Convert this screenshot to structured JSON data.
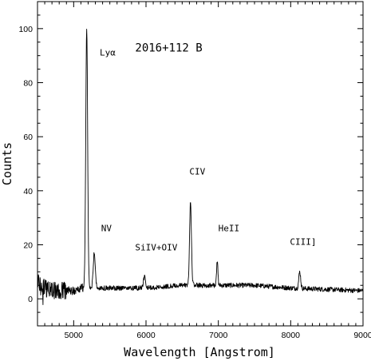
{
  "chart_data": {
    "type": "line",
    "title": "2016+112 B",
    "xlabel": "Wavelength [Angstrom]",
    "ylabel": "Counts",
    "xlim": [
      4500,
      9000
    ],
    "ylim": [
      -10,
      110
    ],
    "x_ticks": [
      5000,
      6000,
      7000,
      8000,
      9000
    ],
    "y_ticks": [
      0,
      20,
      40,
      60,
      80,
      100
    ],
    "grid": false,
    "continuum": [
      [
        4500,
        6
      ],
      [
        4600,
        4
      ],
      [
        4700,
        3
      ],
      [
        4800,
        3
      ],
      [
        4900,
        3
      ],
      [
        5000,
        3
      ],
      [
        5100,
        4
      ],
      [
        5200,
        4
      ],
      [
        5500,
        4
      ],
      [
        6000,
        4
      ],
      [
        6500,
        5
      ],
      [
        7000,
        5
      ],
      [
        7500,
        5
      ],
      [
        8000,
        4
      ],
      [
        8500,
        3.5
      ],
      [
        9000,
        3
      ]
    ],
    "emission_lines": [
      {
        "name": "Lyα",
        "x": 5180,
        "peak": 100,
        "width": 13
      },
      {
        "name": "NV",
        "x": 5285,
        "peak": 17.5,
        "width": 14
      },
      {
        "name": "SiIV+OIV",
        "x": 5980,
        "peak": 8.5,
        "width": 14
      },
      {
        "name": "CIV",
        "x": 6615,
        "peak": 35.5,
        "width": 13
      },
      {
        "name": "HeII",
        "x": 6985,
        "peak": 14,
        "width": 9
      },
      {
        "name": "CIII]",
        "x": 8125,
        "peak": 10,
        "width": 13
      }
    ],
    "annotations": [
      {
        "text": "Lyα",
        "x": 5360,
        "y": 90
      },
      {
        "text": "NV",
        "x": 5380,
        "y": 25
      },
      {
        "text": "SiIV+OIV",
        "x": 5850,
        "y": 18
      },
      {
        "text": "CIV",
        "x": 6600,
        "y": 46
      },
      {
        "text": "HeII",
        "x": 7000,
        "y": 25
      },
      {
        "text": "CIII]",
        "x": 7990,
        "y": 20
      }
    ]
  }
}
